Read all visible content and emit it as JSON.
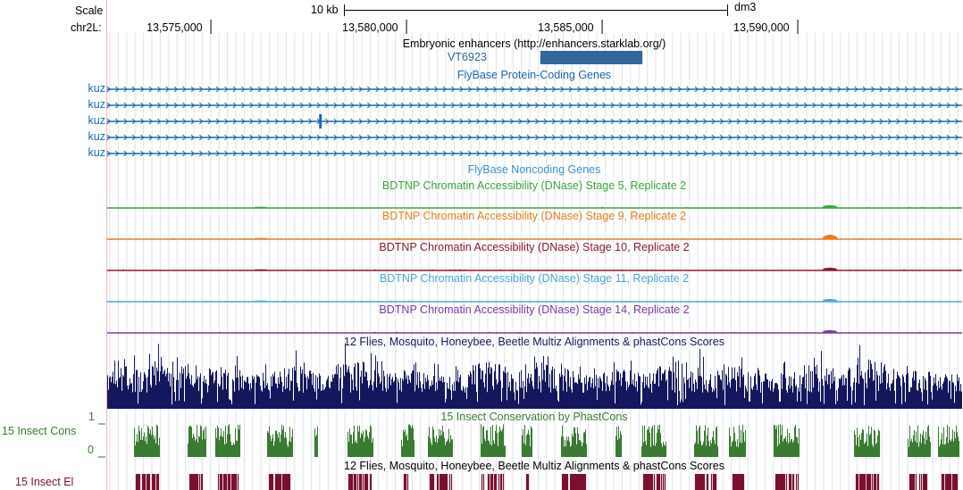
{
  "ruler": {
    "scale_label": "Scale",
    "scale_bar_text": "10 kb",
    "assembly": "dm3",
    "chrom_label": "chr2L:",
    "positions": [
      {
        "pos": 13575000,
        "label": "13,575,000"
      },
      {
        "pos": 13580000,
        "label": "13,580,000"
      },
      {
        "pos": 13585000,
        "label": "13,585,000"
      },
      {
        "pos": 13590000,
        "label": "13,590,000"
      }
    ]
  },
  "view": {
    "start": 13572350,
    "end": 13594200
  },
  "enhancers": {
    "title": "Embryonic enhancers (http://enhancers.starklab.org/)",
    "element_name": "VT6923",
    "element_start": 13583420,
    "element_end": 13586030,
    "color": "#336699"
  },
  "genes": {
    "title": "FlyBase Protein-Coding Genes",
    "color": "#1a66b3",
    "transcripts": [
      {
        "name": "kuz"
      },
      {
        "name": "kuz"
      },
      {
        "name": "kuz"
      },
      {
        "name": "kuz"
      },
      {
        "name": "kuz"
      }
    ],
    "exon_pos": 13577800,
    "exon_transcript": 2
  },
  "noncoding": {
    "title": "FlyBase Noncoding Genes",
    "color": "#3b8fd0"
  },
  "dnase_tracks": [
    {
      "title": "BDTNP Chromatin Accessibility (DNase) Stage 5, Replicate 2",
      "color": "#3aa63a"
    },
    {
      "title": "BDTNP Chromatin Accessibility (DNase) Stage 9, Replicate 2",
      "color": "#f07a1a"
    },
    {
      "title": "BDTNP Chromatin Accessibility (DNase) Stage 10, Replicate 2",
      "color": "#8b1a2b"
    },
    {
      "title": "BDTNP Chromatin Accessibility (DNase) Stage 11, Replicate 2",
      "color": "#4aa8d8"
    },
    {
      "title": "BDTNP Chromatin Accessibility (DNase) Stage 14, Replicate 2",
      "color": "#7a3aa8"
    }
  ],
  "multiz": {
    "title": "12 Flies, Mosquito, Honeybee, Beetle Multiz Alignments & phastCons Scores",
    "color": "#14175e"
  },
  "phastcons": {
    "title": "15 Insect Conservation by PhastCons",
    "side_label": "15 Insect Cons",
    "ymax_label": "1",
    "ymin_label": "0",
    "color": "#3a7a32"
  },
  "elements": {
    "title": "12 Flies, Mosquito, Honeybee, Beetle Multiz Alignments & phastCons Scores",
    "side_label": "15 Insect El",
    "color": "#7a1030"
  }
}
